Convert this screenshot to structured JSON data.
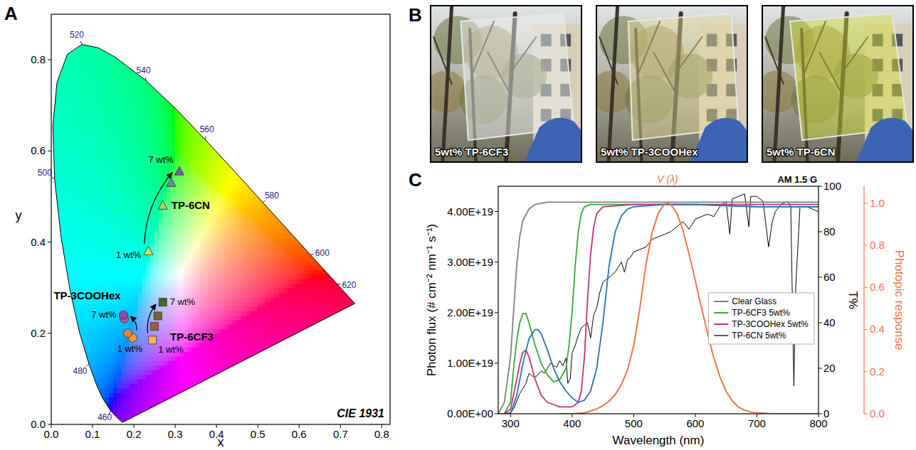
{
  "chart_data": [
    {
      "type": "scatter",
      "panel_label": "A",
      "x_label": "x",
      "y_label": "y",
      "xlim": [
        0,
        0.82
      ],
      "ylim": [
        0,
        0.9
      ],
      "xticks": [
        {
          "value": 0,
          "label": "0.0"
        },
        0.1,
        0.2,
        0.3,
        0.4,
        0.5,
        0.6,
        0.7,
        0.8
      ],
      "yticks": [
        {
          "value": 0,
          "label": "0.0"
        },
        0.2,
        0.4,
        0.6,
        0.8
      ],
      "grid": false,
      "locus": {
        "wavelength": [
          380,
          420,
          440,
          450,
          460,
          470,
          475,
          480,
          485,
          490,
          495,
          500,
          505,
          510,
          515,
          520,
          525,
          530,
          540,
          550,
          560,
          570,
          580,
          590,
          600,
          610,
          620,
          640,
          660,
          700
        ],
        "x": [
          0.1741,
          0.1714,
          0.1644,
          0.1566,
          0.144,
          0.1241,
          0.1096,
          0.0913,
          0.0687,
          0.0454,
          0.0235,
          0.0082,
          0.0039,
          0.0139,
          0.0389,
          0.0743,
          0.1142,
          0.1547,
          0.2296,
          0.3016,
          0.3731,
          0.4441,
          0.5125,
          0.5752,
          0.627,
          0.6658,
          0.6915,
          0.719,
          0.73,
          0.7347
        ],
        "y": [
          0.005,
          0.0051,
          0.0109,
          0.0177,
          0.0297,
          0.0578,
          0.0868,
          0.1327,
          0.2007,
          0.295,
          0.4127,
          0.5384,
          0.6548,
          0.7502,
          0.812,
          0.8338,
          0.8262,
          0.8059,
          0.7543,
          0.6923,
          0.6245,
          0.5547,
          0.4866,
          0.4242,
          0.3725,
          0.334,
          0.3083,
          0.2809,
          0.27,
          0.2653
        ]
      },
      "locus_labels": [
        460,
        480,
        500,
        520,
        540,
        560,
        580,
        600,
        620
      ],
      "series": [
        {
          "name": "TP-6CN",
          "marker": "triangle",
          "colors": [
            "#d6e35a",
            "#a9d46e",
            "#6b8aa6",
            "#6a62b0"
          ],
          "x": [
            0.235,
            0.27,
            0.29,
            0.31
          ],
          "values": [
            0.38,
            0.48,
            0.53,
            0.555
          ]
        },
        {
          "name": "TP-3COOHex",
          "marker": "circle",
          "colors": [
            "#f29a3a",
            "#e8823c",
            "#c24ea6",
            "#8e4cb8"
          ],
          "x": [
            0.197,
            0.185,
            0.177,
            0.175
          ],
          "values": [
            0.19,
            0.2,
            0.232,
            0.24
          ]
        },
        {
          "name": "TP-6CF3",
          "marker": "square",
          "colors": [
            "#ffb45e",
            "#a85a34",
            "#7a6426",
            "#3f6a2a"
          ],
          "x": [
            0.245,
            0.25,
            0.258,
            0.27
          ],
          "values": [
            0.185,
            0.215,
            0.238,
            0.268
          ]
        }
      ],
      "annotations": [
        {
          "text": "1 wt%",
          "series": 0,
          "point": 0
        },
        {
          "text": "7 wt%",
          "series": 0,
          "point": 3
        },
        {
          "text": "1 wt%",
          "series": 1,
          "point": 0
        },
        {
          "text": "7 wt%",
          "series": 1,
          "point": 3
        },
        {
          "text": "1 wt%",
          "series": 2,
          "point": 0
        },
        {
          "text": "7 wt%",
          "series": 2,
          "point": 3
        },
        {
          "text": "CIE 1931"
        }
      ]
    },
    {
      "type": "line",
      "panel_label": "C",
      "x_label": "Wavelength (nm)",
      "y_label": "Photon flux (# cm⁻² nm⁻¹ s⁻¹)",
      "y2_label": "T%",
      "y3_label": "Photopic response",
      "xlim": [
        280,
        800
      ],
      "xticks": [
        300,
        400,
        500,
        600,
        700,
        800
      ],
      "ylim": [
        0,
        4.5e+19
      ],
      "yticks": [
        {
          "value": 0,
          "label": "0.00E+00"
        },
        {
          "value": 1e+19,
          "label": "1.00E+19"
        },
        {
          "value": 2e+19,
          "label": "2.00E+19"
        },
        {
          "value": 3e+19,
          "label": "3.00E+19"
        },
        {
          "value": 4e+19,
          "label": "4.00E+19"
        }
      ],
      "y2lim": [
        0,
        100
      ],
      "y2ticks": [
        0,
        20,
        40,
        60,
        80,
        100
      ],
      "y3lim": [
        0,
        1.08
      ],
      "y3ticks": [
        {
          "value": 0,
          "label": "0.0"
        },
        0.2,
        0.4,
        0.6,
        0.8,
        {
          "value": 1,
          "label": "1.0"
        }
      ],
      "grid": false,
      "legend": "right",
      "series": [
        {
          "name": "AM 1.5 G",
          "color": "#000000",
          "x": [
            280,
            290,
            300,
            305,
            310,
            315,
            320,
            325,
            330,
            335,
            340,
            345,
            350,
            355,
            360,
            365,
            370,
            375,
            380,
            385,
            390,
            393,
            397,
            400,
            405,
            410,
            415,
            420,
            425,
            430,
            435,
            440,
            445,
            450,
            455,
            460,
            465,
            470,
            475,
            480,
            485,
            490,
            495,
            500,
            510,
            520,
            530,
            540,
            550,
            560,
            570,
            580,
            590,
            600,
            610,
            620,
            630,
            640,
            650,
            656,
            660,
            670,
            680,
            687,
            690,
            700,
            710,
            719,
            725,
            730,
            740,
            750,
            755,
            760,
            763,
            770,
            780,
            790,
            800
          ],
          "values": [
            0,
            0,
            2e+17,
            1e+18,
            2.5e+18,
            4e+18,
            5e+18,
            6e+18,
            8e+18,
            7.5e+18,
            7.2e+18,
            7.8e+18,
            8.5e+18,
            8e+18,
            9e+18,
            1e+19,
            9.5e+18,
            9.2e+18,
            1.05e+19,
            9.5e+18,
            1.1e+19,
            6e+18,
            7e+18,
            1.2e+19,
            1.35e+19,
            1.55e+19,
            1.7e+19,
            1.75e+19,
            1.8e+19,
            1.5e+19,
            1.95e+19,
            2.1e+19,
            2.4e+19,
            2.6e+19,
            2.65e+19,
            2.7e+19,
            2.75e+19,
            2.8e+19,
            2.9e+19,
            3e+19,
            2.8e+19,
            3.05e+19,
            3.1e+19,
            3.2e+19,
            3.25e+19,
            3.3e+19,
            3.45e+19,
            3.5e+19,
            3.55e+19,
            3.6e+19,
            3.7e+19,
            3.8e+19,
            3.65e+19,
            3.85e+19,
            3.9e+19,
            3.95e+19,
            3.9e+19,
            4.1e+19,
            4.2e+19,
            3.55e+19,
            4.25e+19,
            4.3e+19,
            4.35e+19,
            3.7e+19,
            4.3e+19,
            4.3e+19,
            4.2e+19,
            3.3e+19,
            3.8e+19,
            4e+19,
            4.15e+19,
            4.2e+19,
            4.1e+19,
            5.5e+18,
            2.5e+19,
            4.1e+19,
            4.1e+19,
            4.05e+19,
            4e+19
          ]
        },
        {
          "name": "Clear Glass",
          "color": "#808080",
          "axis": "y2",
          "x": [
            280,
            290,
            300,
            305,
            310,
            315,
            320,
            330,
            340,
            360,
            400,
            500,
            600,
            700,
            800
          ],
          "values": [
            0,
            5,
            25,
            45,
            65,
            78,
            85,
            90,
            92,
            93,
            93,
            93,
            93,
            93,
            93
          ]
        },
        {
          "name": "TP-6CF3 5wt%",
          "color": "#3aa53a",
          "axis": "y2",
          "x": [
            290,
            300,
            305,
            310,
            315,
            320,
            325,
            330,
            340,
            350,
            360,
            370,
            380,
            390,
            395,
            400,
            405,
            410,
            415,
            420,
            430,
            500,
            600,
            700,
            800
          ],
          "values": [
            0,
            5,
            20,
            32,
            40,
            44,
            44,
            40,
            30,
            22,
            17,
            14,
            15,
            20,
            30,
            45,
            65,
            80,
            88,
            91,
            92,
            92,
            92,
            91,
            91
          ]
        },
        {
          "name": "TP-3COOHex 5wt%",
          "color": "#c0307a",
          "axis": "y2",
          "x": [
            290,
            300,
            310,
            315,
            320,
            325,
            330,
            340,
            350,
            360,
            380,
            400,
            410,
            415,
            420,
            425,
            430,
            435,
            440,
            450,
            500,
            600,
            700,
            800
          ],
          "values": [
            0,
            2,
            15,
            22,
            27,
            28,
            25,
            15,
            8,
            5,
            3,
            3,
            5,
            10,
            25,
            50,
            70,
            82,
            88,
            91,
            92,
            92,
            92,
            92
          ]
        },
        {
          "name": "TP-6CN 5wt%",
          "color": "#2a6fb0",
          "axis": "y2",
          "x": [
            300,
            310,
            320,
            330,
            340,
            345,
            350,
            360,
            370,
            380,
            390,
            400,
            410,
            420,
            430,
            440,
            450,
            460,
            470,
            480,
            490,
            500,
            550,
            600,
            700,
            800
          ],
          "values": [
            0,
            8,
            22,
            33,
            37,
            37,
            35,
            28,
            20,
            14,
            10,
            7,
            5,
            6,
            10,
            20,
            40,
            65,
            80,
            87,
            90,
            91,
            92,
            92,
            91,
            91
          ]
        },
        {
          "name": "V (λ)",
          "color": "#f4704a",
          "axis": "y3",
          "x": [
            380,
            400,
            420,
            440,
            450,
            460,
            470,
            480,
            490,
            500,
            510,
            520,
            530,
            540,
            550,
            555,
            560,
            570,
            580,
            590,
            600,
            610,
            620,
            630,
            640,
            650,
            660,
            670,
            680,
            690,
            700,
            720,
            750,
            800
          ],
          "values": [
            0,
            0.0004,
            0.004,
            0.023,
            0.038,
            0.06,
            0.091,
            0.139,
            0.208,
            0.323,
            0.503,
            0.71,
            0.862,
            0.954,
            0.995,
            1,
            0.995,
            0.952,
            0.87,
            0.757,
            0.631,
            0.503,
            0.381,
            0.265,
            0.175,
            0.107,
            0.061,
            0.032,
            0.017,
            0.008,
            0.004,
            0.001,
            0,
            0
          ]
        }
      ]
    }
  ],
  "photos": {
    "panel_label": "B",
    "items": [
      {
        "label": "5wt% TP-6CF3",
        "color": "#f2f6f6"
      },
      {
        "label": "5wt% TP-3COOHex",
        "color": "#e6dc96"
      },
      {
        "label": "5wt% TP-6CN",
        "color": "#d6e03a"
      }
    ]
  }
}
